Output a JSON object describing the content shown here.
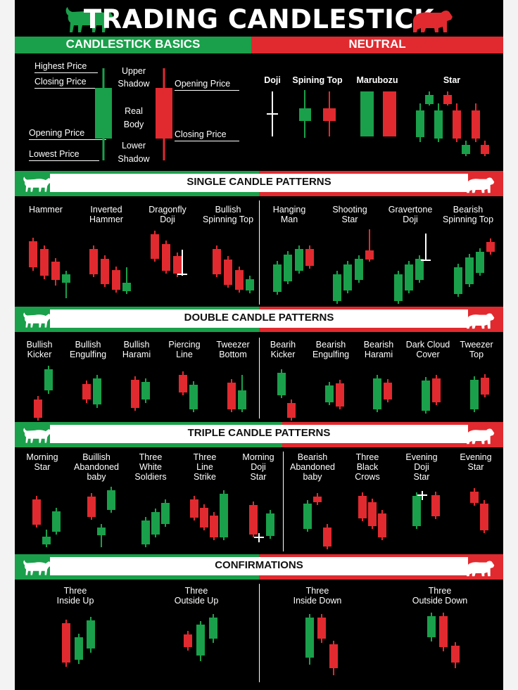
{
  "title": "TRADING CANDLESTICK",
  "basics_bar": {
    "left": "CANDLESTICK BASICS",
    "right": "NEUTRAL"
  },
  "basics": {
    "highest_price": "Highest Price",
    "closing_price_left": "Closing Price",
    "opening_price_left": "Opening Price",
    "lowest_price": "Lowest Price",
    "upper_shadow": [
      "Upper",
      "Shadow"
    ],
    "real_body": [
      "Real",
      "Body"
    ],
    "lower_shadow": [
      "Lower",
      "Shadow"
    ],
    "opening_price_right": "Opening Price",
    "closing_price_right": "Closing Price"
  },
  "neutral": [
    "Doji",
    "Spining Top",
    "Marubozu",
    "Star"
  ],
  "sections": {
    "single": "SINGLE CANDLE PATTERNS",
    "double": "DOUBLE CANDLE PATTERNS",
    "triple": "TRIPLE CANDLE PATTERNS",
    "confirm": "CONFIRMATIONS"
  },
  "single_patterns": [
    [
      "Hammer"
    ],
    [
      "Inverted",
      "Hammer"
    ],
    [
      "Dragonfly",
      "Doji"
    ],
    [
      "Bullish",
      "Spinning Top"
    ],
    [
      "Hanging",
      "Man"
    ],
    [
      "Shooting",
      "Star"
    ],
    [
      "Gravertone",
      "Doji"
    ],
    [
      "Bearish",
      "Spinning Top"
    ]
  ],
  "double_patterns": [
    [
      "Bullish",
      "Kicker"
    ],
    [
      "Bullish",
      "Engulfing"
    ],
    [
      "Bullish",
      "Harami"
    ],
    [
      "Piercing",
      "Line"
    ],
    [
      "Tweezer",
      "Bottom"
    ],
    [
      "Bearih",
      "Kicker"
    ],
    [
      "Bearish",
      "Engulfing"
    ],
    [
      "Bearish",
      "Harami"
    ],
    [
      "Dark Cloud",
      "Cover"
    ],
    [
      "Tweezer",
      "Top"
    ]
  ],
  "triple_patterns": [
    [
      "Morning",
      "Star"
    ],
    [
      "Buillish",
      "Abandoned",
      "baby"
    ],
    [
      "Three",
      "White",
      "Soldiers"
    ],
    [
      "Three",
      "Line",
      "Strike"
    ],
    [
      "Morning",
      "Doji",
      "Star"
    ],
    [
      "Bearish",
      "Abandoned",
      "baby"
    ],
    [
      "Three",
      "Black",
      "Crows"
    ],
    [
      "Evening",
      "Doji",
      "Star"
    ],
    [
      "Evening",
      "Star"
    ]
  ],
  "confirm_patterns": [
    [
      "Three",
      "Inside Up"
    ],
    [
      "Three",
      "Outside Up"
    ],
    [
      "Three",
      "Inside Down"
    ],
    [
      "Three",
      "Outside Down"
    ]
  ],
  "colors": {
    "bull": "#1aa04a",
    "bear": "#e12a2f",
    "background": "#000000"
  },
  "icons": [
    "bull-icon",
    "bear-icon"
  ]
}
